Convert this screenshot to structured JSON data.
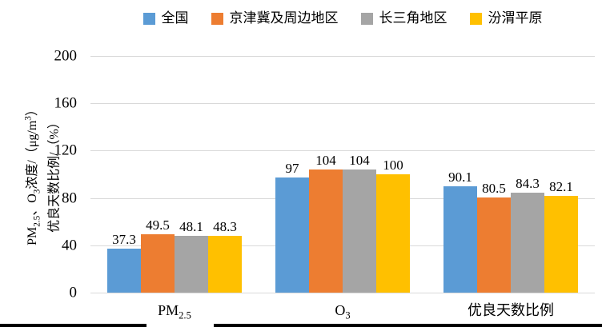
{
  "chart_data": {
    "type": "bar",
    "title": "",
    "categories": [
      "PM2.5",
      "O3",
      "优良天数比例"
    ],
    "series": [
      {
        "name": "全国",
        "color": "#5B9BD5",
        "values": [
          37.3,
          97,
          90.1
        ],
        "labels": [
          "37.3",
          "97",
          "90.1"
        ]
      },
      {
        "name": "京津冀及周边地区",
        "color": "#ED7D31",
        "values": [
          49.5,
          104,
          80.5
        ],
        "labels": [
          "49.5",
          "104",
          "80.5"
        ]
      },
      {
        "name": "长三角地区",
        "color": "#A5A5A5",
        "values": [
          48.1,
          104,
          84.3
        ],
        "labels": [
          "48.1",
          "104",
          "84.3"
        ]
      },
      {
        "name": "汾渭平原",
        "color": "#FFC000",
        "values": [
          48.3,
          100,
          82.1
        ],
        "labels": [
          "48.3",
          "100",
          "82.1"
        ]
      }
    ],
    "xlabel": "",
    "ylabel": "PM2.5、O3浓度/（μg/m3） 优良天数比例/（%）",
    "ylim": [
      0,
      200
    ],
    "yticks": [
      0,
      40,
      80,
      120,
      160,
      200
    ],
    "grid": true,
    "legend_position": "top",
    "gridline_color": "#D9D9D9"
  },
  "y_axis_title": {
    "line1": {
      "pm": "PM",
      "pm_sub": "2.5",
      "mid": "、O",
      "o_sub": "3",
      "rest": "浓度/（μg/m",
      "sup": "3",
      "close": "）"
    },
    "line2": "优良天数比例/（%）"
  },
  "x_labels": [
    {
      "main": "PM",
      "sub": "2.5"
    },
    {
      "main": "O",
      "sub": "3"
    },
    {
      "main": "优良天数比例",
      "sub": ""
    }
  ]
}
